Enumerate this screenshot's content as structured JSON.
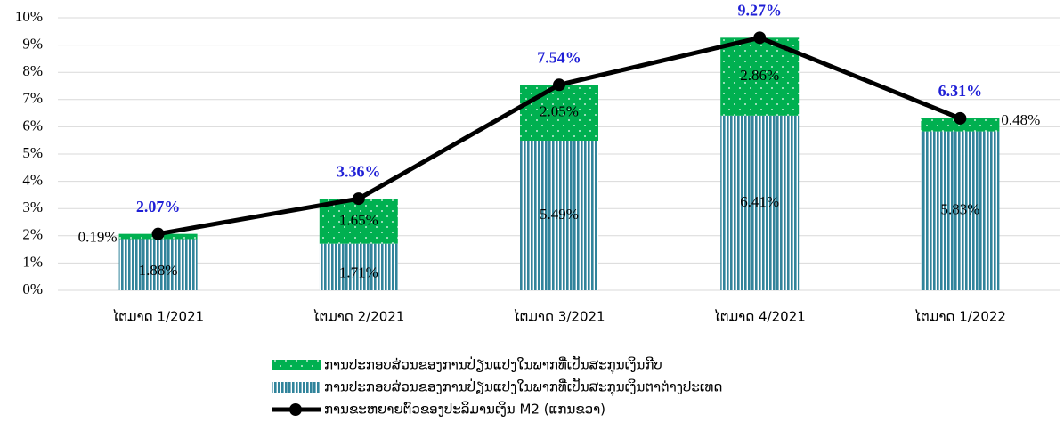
{
  "chart_data": {
    "type": "bar",
    "categories": [
      "ໄຕມາດ 1/2021",
      "ໄຕມາດ 2/2021",
      "ໄຕມາດ 3/2021",
      "ໄຕມາດ 4/2021",
      "ໄຕມາດ 1/2022"
    ],
    "series": [
      {
        "name": "ການປະກອບສ່ວນຂອງການປ່ຽນແປງໃນພາກທີ່ເປັນສະກຸນເງິນຕາຕ່າງປະເທດ",
        "type": "bar",
        "color": "#31849b",
        "values": [
          1.88,
          1.71,
          5.49,
          6.41,
          5.83
        ],
        "value_labels": [
          "1.88%",
          "1.71%",
          "5.49%",
          "6.41%",
          "5.83%"
        ]
      },
      {
        "name": "ການປະກອບສ່ວນຂອງການປ່ຽນແປງໃນພາກທີ່ເປັນສະກຸນເງິນກີບ",
        "type": "bar",
        "color": "#00b050",
        "values": [
          0.19,
          1.65,
          2.05,
          2.86,
          0.48
        ],
        "value_labels": [
          "0.19%",
          "1.65%",
          "2.05%",
          "2.86%",
          "0.48%"
        ]
      },
      {
        "name": "ການຂະຫຍາຍຕົວຂອງປະລິມານເງິນ M2 (ແກນຂວາ)",
        "type": "line",
        "color": "#000000",
        "values": [
          2.07,
          3.36,
          7.54,
          9.27,
          6.31
        ],
        "value_labels": [
          "2.07%",
          "3.36%",
          "7.54%",
          "9.27%",
          "6.31%"
        ]
      }
    ],
    "stacked": true,
    "ylim": [
      0,
      10
    ],
    "yticks": [
      {
        "value": 0,
        "label": "0%"
      },
      {
        "value": 1,
        "label": "1%"
      },
      {
        "value": 2,
        "label": "2%"
      },
      {
        "value": 3,
        "label": "3%"
      },
      {
        "value": 4,
        "label": "4%"
      },
      {
        "value": 5,
        "label": "5%"
      },
      {
        "value": 6,
        "label": "6%"
      },
      {
        "value": 7,
        "label": "7%"
      },
      {
        "value": 8,
        "label": "8%"
      },
      {
        "value": 9,
        "label": "9%"
      },
      {
        "value": 10,
        "label": "10%"
      }
    ],
    "grid": true
  }
}
